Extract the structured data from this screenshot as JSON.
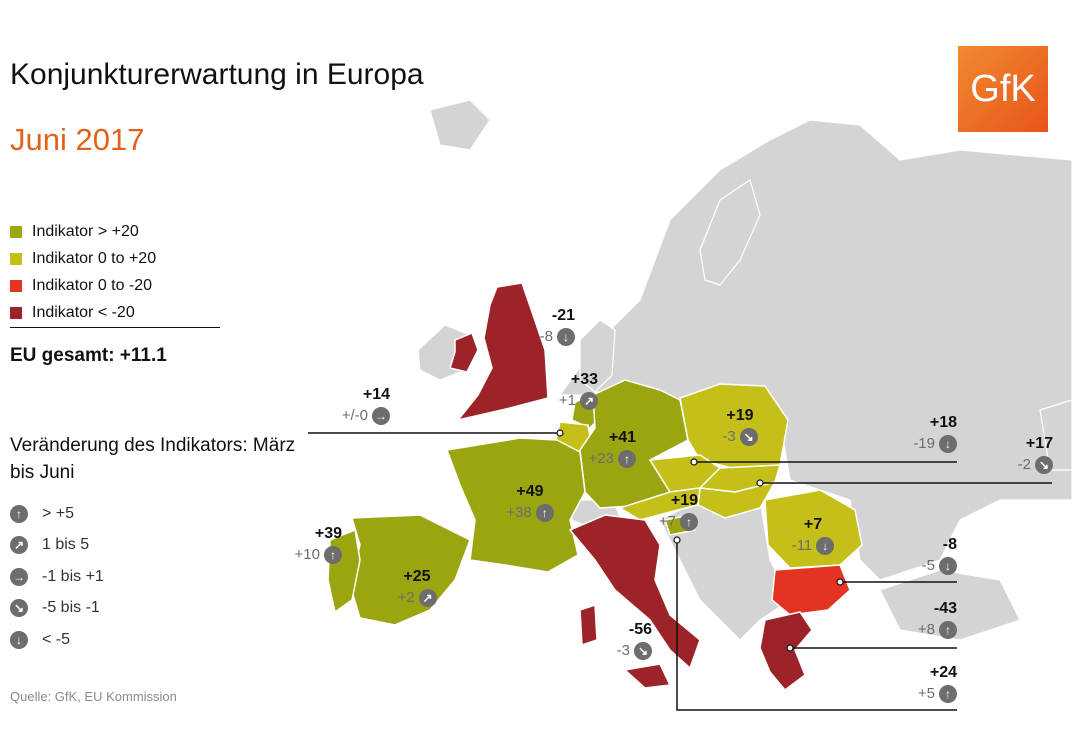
{
  "title": "Konjunkturerwartung in Europa",
  "subtitle": "Juni 2017",
  "logo_text": "GfK",
  "legend": [
    {
      "label": "Indikator > +20",
      "color": "#9aa50f"
    },
    {
      "label": "Indikator 0 to +20",
      "color": "#c4c019"
    },
    {
      "label": "Indikator 0 to -20",
      "color": "#e23323"
    },
    {
      "label": "Indikator < -20",
      "color": "#9c2327"
    }
  ],
  "eu_total": "EU gesamt: +11.1",
  "change_title": "Veränderung des Indikators: März bis Juni",
  "change_legend": [
    {
      "label": "> +5",
      "icon": "arrow-up-icon"
    },
    {
      "label": "1 bis 5",
      "icon": "arrow-up-right-icon"
    },
    {
      "label": "-1 bis +1",
      "icon": "arrow-right-icon"
    },
    {
      "label": "-5 bis -1",
      "icon": "arrow-down-right-icon"
    },
    {
      "label": "< -5",
      "icon": "arrow-down-icon"
    }
  ],
  "source": "Quelle: GfK, EU Kommission",
  "colors": {
    "background_land": "#d4d4d4",
    "border": "#ffffff",
    "leader_line": "#111111"
  },
  "countries": [
    {
      "id": "uk",
      "value": "-21",
      "change": "-8",
      "trend": "arrow-down-icon"
    },
    {
      "id": "belgium",
      "value": "+14",
      "change": "+/-0",
      "trend": "arrow-right-icon"
    },
    {
      "id": "netherlands",
      "value": "+33",
      "change": "+1",
      "trend": "arrow-up-right-icon"
    },
    {
      "id": "germany",
      "value": "+41",
      "change": "+23",
      "trend": "arrow-up-icon"
    },
    {
      "id": "poland",
      "value": "+19",
      "change": "-3",
      "trend": "arrow-down-right-icon"
    },
    {
      "id": "czechia",
      "value": "+18",
      "change": "-19",
      "trend": "arrow-down-icon"
    },
    {
      "id": "hungary",
      "value": "+17",
      "change": "-2",
      "trend": "arrow-down-right-icon"
    },
    {
      "id": "france",
      "value": "+49",
      "change": "+38",
      "trend": "arrow-up-icon"
    },
    {
      "id": "austria",
      "value": "+19",
      "change": "+7",
      "trend": "arrow-up-icon"
    },
    {
      "id": "portugal",
      "value": "+39",
      "change": "+10",
      "trend": "arrow-up-icon"
    },
    {
      "id": "spain",
      "value": "+25",
      "change": "+2",
      "trend": "arrow-up-right-icon"
    },
    {
      "id": "romania",
      "value": "+7",
      "change": "-11",
      "trend": "arrow-down-icon"
    },
    {
      "id": "bulgaria",
      "value": "-8",
      "change": "-5",
      "trend": "arrow-down-icon"
    },
    {
      "id": "greece",
      "value": "-43",
      "change": "+8",
      "trend": "arrow-up-icon"
    },
    {
      "id": "italy",
      "value": "-56",
      "change": "-3",
      "trend": "arrow-down-right-icon"
    },
    {
      "id": "slovenia",
      "value": "+24",
      "change": "+5",
      "trend": "arrow-up-icon"
    }
  ]
}
